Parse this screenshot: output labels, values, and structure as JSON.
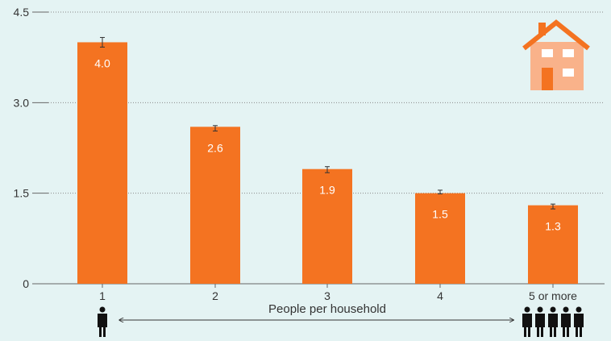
{
  "chart_data": {
    "type": "bar",
    "categories": [
      "1",
      "2",
      "3",
      "4",
      "5 or more"
    ],
    "values": [
      4.0,
      2.6,
      1.9,
      1.5,
      1.3
    ],
    "value_labels": [
      "4.0",
      "2.6",
      "1.9",
      "1.5",
      "1.3"
    ],
    "error_bars": [
      {
        "low": 3.92,
        "high": 4.08
      },
      {
        "low": 2.53,
        "high": 2.62
      },
      {
        "low": 1.84,
        "high": 1.94
      },
      {
        "low": 1.49,
        "high": 1.55
      },
      {
        "low": 1.24,
        "high": 1.32
      }
    ],
    "xlabel": "People per household",
    "ylabel": "",
    "ylim": [
      0,
      4.5
    ],
    "yticks": [
      0,
      1.5,
      3.0,
      4.5
    ],
    "ytick_labels": [
      "0",
      "1.5",
      "3.0",
      "4.5"
    ],
    "grid": true,
    "legend": "none",
    "colors": {
      "bar": "#f47321",
      "background": "#e4f3f3",
      "grid": "#888888",
      "house_body": "#f9b28a",
      "house_roof": "#f47321"
    }
  },
  "icons": {
    "house": "house-icon",
    "single_person": "person-icon",
    "group": "people-group-icon"
  }
}
